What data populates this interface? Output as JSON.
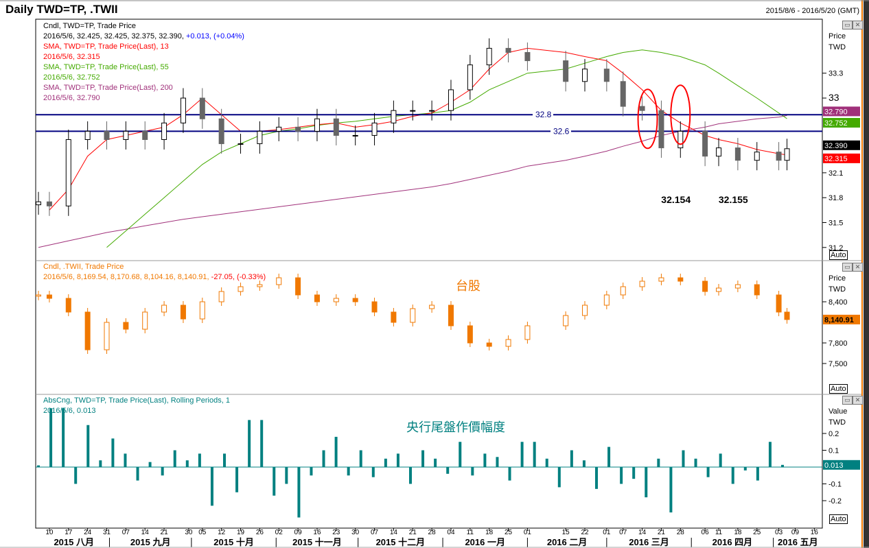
{
  "header": {
    "title": "Daily TWD=TP, .TWII",
    "range": "2015/8/6 - 2016/5/20 (GMT)"
  },
  "legend_top": {
    "l1": "Cndl, TWD=TP, Trade Price",
    "l2a": "2016/5/6, 32.425, 32.425, 32.375, 32.390, ",
    "l2b": "+0.013, (+0.04%)",
    "l3": "SMA, TWD=TP, Trade Price(Last),  13",
    "l4": "2016/5/6, 32.315",
    "l5": "SMA, TWD=TP, Trade Price(Last),  55",
    "l6": "2016/5/6, 32.752",
    "l7": "SMA, TWD=TP, Trade Price(Last),  200",
    "l8": "2016/5/6, 32.790"
  },
  "legend_mid": {
    "l1": "Cndl, .TWII, Trade Price",
    "l2a": "2016/5/6, 8,169.54, 8,170.68, 8,104.16, 8,140.91, ",
    "l2b": "-27.05, (-0.33%)"
  },
  "legend_bot": {
    "l1": "AbsCng, TWD=TP, Trade Price(Last), Rolling Periods, 1",
    "l2": "2016/5/6, 0.013"
  },
  "axis_titles": {
    "top_1": "Price",
    "top_2": "TWD",
    "mid_1": "Price",
    "mid_2": "TWD",
    "bot_1": "Value",
    "bot_2": "TWD",
    "auto": "Auto"
  },
  "colors": {
    "up": "#ffffff",
    "down": "#666666",
    "sma13": "#ff0000",
    "sma55": "#44aa00",
    "sma200": "#a0307a",
    "twii": "#f07800",
    "bar": "#008080",
    "hline": "#000080"
  },
  "chart_data": [
    {
      "type": "candlestick",
      "title": "Cndl, TWD=TP, Trade Price",
      "ylabel": "Price TWD",
      "ylim": [
        31.1,
        33.9
      ],
      "yticks": [
        {
          "v": 33.3,
          "label": "33.3"
        },
        {
          "v": 33,
          "label": "33"
        },
        {
          "v": 32.1,
          "label": "32.1"
        },
        {
          "v": 31.8,
          "label": "31.8"
        },
        {
          "v": 31.5,
          "label": "31.5"
        },
        {
          "v": 31.2,
          "label": "31.2"
        }
      ],
      "dates": [
        "2015-08-06",
        "2015-08-10",
        "2015-08-17",
        "2015-08-24",
        "2015-08-31",
        "2015-09-07",
        "2015-09-14",
        "2015-09-21",
        "2015-09-28",
        "2015-10-05",
        "2015-10-12",
        "2015-10-19",
        "2015-10-26",
        "2015-11-02",
        "2015-11-09",
        "2015-11-16",
        "2015-11-23",
        "2015-11-30",
        "2015-12-07",
        "2015-12-14",
        "2015-12-21",
        "2015-12-28",
        "2016-01-04",
        "2016-01-11",
        "2016-01-18",
        "2016-01-25",
        "2016-02-01",
        "2016-02-15",
        "2016-02-22",
        "2016-03-01",
        "2016-03-07",
        "2016-03-14",
        "2016-03-21",
        "2016-03-28",
        "2016-04-06",
        "2016-04-11",
        "2016-04-18",
        "2016-04-25",
        "2016-05-03",
        "2016-05-06"
      ],
      "close": [
        31.75,
        31.7,
        32.5,
        32.6,
        32.5,
        32.6,
        32.5,
        32.7,
        33.0,
        32.75,
        32.45,
        32.45,
        32.6,
        32.65,
        32.6,
        32.75,
        32.55,
        32.55,
        32.7,
        32.85,
        32.85,
        32.85,
        33.1,
        33.4,
        33.6,
        33.55,
        33.45,
        33.2,
        33.35,
        33.2,
        32.9,
        32.85,
        32.4,
        32.6,
        32.3,
        32.4,
        32.25,
        32.35,
        32.25,
        32.39
      ],
      "series": [
        {
          "name": "SMA 13",
          "values": [
            null,
            31.65,
            31.9,
            32.3,
            32.5,
            32.55,
            32.6,
            32.65,
            32.8,
            33.0,
            32.8,
            32.6,
            32.6,
            32.62,
            32.65,
            32.68,
            32.7,
            32.65,
            32.68,
            32.72,
            32.78,
            32.82,
            32.95,
            33.1,
            33.35,
            33.55,
            33.6,
            33.55,
            33.5,
            33.45,
            33.3,
            33.1,
            32.85,
            32.7,
            32.55,
            32.5,
            32.45,
            32.38,
            32.33,
            32.315
          ]
        },
        {
          "name": "SMA 55",
          "values": [
            null,
            null,
            null,
            null,
            31.2,
            31.4,
            31.6,
            31.8,
            32.0,
            32.2,
            32.35,
            32.45,
            32.55,
            32.6,
            32.63,
            32.67,
            32.7,
            32.72,
            32.75,
            32.78,
            32.8,
            32.82,
            32.85,
            32.95,
            33.1,
            33.2,
            33.3,
            33.35,
            33.42,
            33.5,
            33.55,
            33.58,
            33.55,
            33.5,
            33.4,
            33.3,
            33.15,
            33.0,
            32.82,
            32.752
          ]
        },
        {
          "name": "SMA 200",
          "values": [
            31.2,
            31.23,
            31.28,
            31.33,
            31.38,
            31.42,
            31.46,
            31.5,
            31.54,
            31.57,
            31.6,
            31.63,
            31.66,
            31.69,
            31.72,
            31.75,
            31.78,
            31.81,
            31.84,
            31.87,
            31.9,
            31.93,
            31.97,
            32.02,
            32.07,
            32.12,
            32.18,
            32.25,
            32.3,
            32.36,
            32.42,
            32.48,
            32.55,
            32.6,
            32.65,
            32.69,
            32.72,
            32.75,
            32.77,
            32.79
          ]
        }
      ],
      "hlines": [
        {
          "v": 32.8,
          "label": "32.8"
        },
        {
          "v": 32.6,
          "label": "32.6"
        }
      ],
      "annotations": [
        {
          "date": "2016-03-28",
          "v": 32.0,
          "label": "32.154"
        },
        {
          "date": "2016-04-18",
          "v": 32.0,
          "label": "32.155"
        }
      ],
      "circles": [
        {
          "date": "2016-03-16",
          "v": 32.75
        },
        {
          "date": "2016-03-28",
          "v": 32.8
        }
      ],
      "last_tags": [
        {
          "v": 32.79,
          "label": "32.790",
          "color": "#a0307a"
        },
        {
          "v": 32.752,
          "label": "32.752",
          "color": "#44aa00"
        },
        {
          "v": 32.39,
          "label": "32.390",
          "color": "#000000"
        },
        {
          "v": 32.315,
          "label": "32.315",
          "color": "#ff0000"
        }
      ]
    },
    {
      "type": "candlestick",
      "title": "Cndl, .TWII, Trade Price",
      "annotation": "台股",
      "ylabel": "Price TWD",
      "yticks": [
        {
          "v": 8400,
          "label": "8,400"
        },
        {
          "v": 7800,
          "label": "7,800"
        },
        {
          "v": 7500,
          "label": "7,500"
        }
      ],
      "close": [
        8500,
        8450,
        8250,
        7700,
        8100,
        8000,
        8250,
        8350,
        8150,
        8400,
        8550,
        8620,
        8650,
        8750,
        8500,
        8400,
        8450,
        8400,
        8250,
        8100,
        8300,
        8350,
        8050,
        7800,
        7750,
        7850,
        8050,
        8200,
        8350,
        8500,
        8620,
        8700,
        8750,
        8700,
        8550,
        8600,
        8650,
        8500,
        8250,
        8140.91
      ],
      "last_tag": {
        "v": 8140.91,
        "label": "8,140.91",
        "color": "#f07800"
      }
    },
    {
      "type": "bar",
      "title": "AbsCng, TWD=TP, Trade Price(Last), Rolling Periods, 1",
      "annotation": "央行尾盤作價幅度",
      "ylabel": "Value TWD",
      "yticks": [
        {
          "v": 0.2,
          "label": "0.2"
        },
        {
          "v": 0.1,
          "label": "0.1"
        },
        {
          "v": -0.1,
          "label": "-0.1"
        },
        {
          "v": -0.2,
          "label": "-0.2"
        }
      ],
      "values": [
        0.01,
        0.35,
        0.35,
        -0.1,
        0.25,
        0.04,
        0.17,
        0.08,
        -0.08,
        0.03,
        -0.05,
        0.1,
        0.04,
        0.08,
        -0.23,
        0.08,
        -0.15,
        0.28,
        0.28,
        -0.17,
        -0.1,
        -0.3,
        -0.05,
        0.1,
        0.18,
        -0.05,
        0.1,
        -0.06,
        0.05,
        0.08,
        -0.1,
        0.1,
        0.05,
        -0.04,
        0.15,
        -0.05,
        0.08,
        0.06,
        -0.08,
        0.15,
        0.15,
        0.05,
        -0.12,
        0.1,
        0.04,
        -0.13,
        0.12,
        -0.1,
        -0.07,
        -0.18,
        0.05,
        -0.27,
        0.1,
        0.05,
        -0.06,
        0.08,
        -0.1,
        -0.02,
        -0.08,
        0.15,
        0.013
      ],
      "last_tag": {
        "v": 0.013,
        "label": "0.013",
        "color": "#008080"
      }
    }
  ],
  "xaxis": {
    "ticks": [
      {
        "d": "2015-08-10",
        "l": "10"
      },
      {
        "d": "2015-08-17",
        "l": "17"
      },
      {
        "d": "2015-08-24",
        "l": "24"
      },
      {
        "d": "2015-08-31",
        "l": "31"
      },
      {
        "d": "2015-09-07",
        "l": "07"
      },
      {
        "d": "2015-09-14",
        "l": "14"
      },
      {
        "d": "2015-09-21",
        "l": "21"
      },
      {
        "d": "2015-09-30",
        "l": "30"
      },
      {
        "d": "2015-10-05",
        "l": "05"
      },
      {
        "d": "2015-10-12",
        "l": "12"
      },
      {
        "d": "2015-10-19",
        "l": "19"
      },
      {
        "d": "2015-10-26",
        "l": "26"
      },
      {
        "d": "2015-11-02",
        "l": "02"
      },
      {
        "d": "2015-11-09",
        "l": "09"
      },
      {
        "d": "2015-11-16",
        "l": "16"
      },
      {
        "d": "2015-11-23",
        "l": "23"
      },
      {
        "d": "2015-11-30",
        "l": "30"
      },
      {
        "d": "2015-12-07",
        "l": "07"
      },
      {
        "d": "2015-12-14",
        "l": "14"
      },
      {
        "d": "2015-12-21",
        "l": "21"
      },
      {
        "d": "2015-12-28",
        "l": "28"
      },
      {
        "d": "2016-01-04",
        "l": "04"
      },
      {
        "d": "2016-01-11",
        "l": "11"
      },
      {
        "d": "2016-01-18",
        "l": "18"
      },
      {
        "d": "2016-01-25",
        "l": "25"
      },
      {
        "d": "2016-02-01",
        "l": "01"
      },
      {
        "d": "2016-02-15",
        "l": "15"
      },
      {
        "d": "2016-02-22",
        "l": "22"
      },
      {
        "d": "2016-03-01",
        "l": "01"
      },
      {
        "d": "2016-03-07",
        "l": "07"
      },
      {
        "d": "2016-03-14",
        "l": "14"
      },
      {
        "d": "2016-03-21",
        "l": "21"
      },
      {
        "d": "2016-03-28",
        "l": "28"
      },
      {
        "d": "2016-04-06",
        "l": "06"
      },
      {
        "d": "2016-04-11",
        "l": "11"
      },
      {
        "d": "2016-04-18",
        "l": "18"
      },
      {
        "d": "2016-04-25",
        "l": "25"
      },
      {
        "d": "2016-05-03",
        "l": "03"
      },
      {
        "d": "2016-05-09",
        "l": "09"
      },
      {
        "d": "2016-05-16",
        "l": "16"
      }
    ],
    "months": [
      {
        "s": "2015-08-06",
        "e": "2015-09-01",
        "l": "2015 八月"
      },
      {
        "s": "2015-09-01",
        "e": "2015-10-01",
        "l": "2015 九月"
      },
      {
        "s": "2015-10-01",
        "e": "2015-11-01",
        "l": "2015 十月"
      },
      {
        "s": "2015-11-01",
        "e": "2015-12-01",
        "l": "2015 十一月"
      },
      {
        "s": "2015-12-01",
        "e": "2016-01-01",
        "l": "2015 十二月"
      },
      {
        "s": "2016-01-01",
        "e": "2016-02-01",
        "l": "2016 一月"
      },
      {
        "s": "2016-02-01",
        "e": "2016-03-01",
        "l": "2016 二月"
      },
      {
        "s": "2016-03-01",
        "e": "2016-04-01",
        "l": "2016 三月"
      },
      {
        "s": "2016-04-01",
        "e": "2016-05-01",
        "l": "2016 四月"
      },
      {
        "s": "2016-05-01",
        "e": "2016-05-20",
        "l": "2016 五月"
      }
    ]
  }
}
